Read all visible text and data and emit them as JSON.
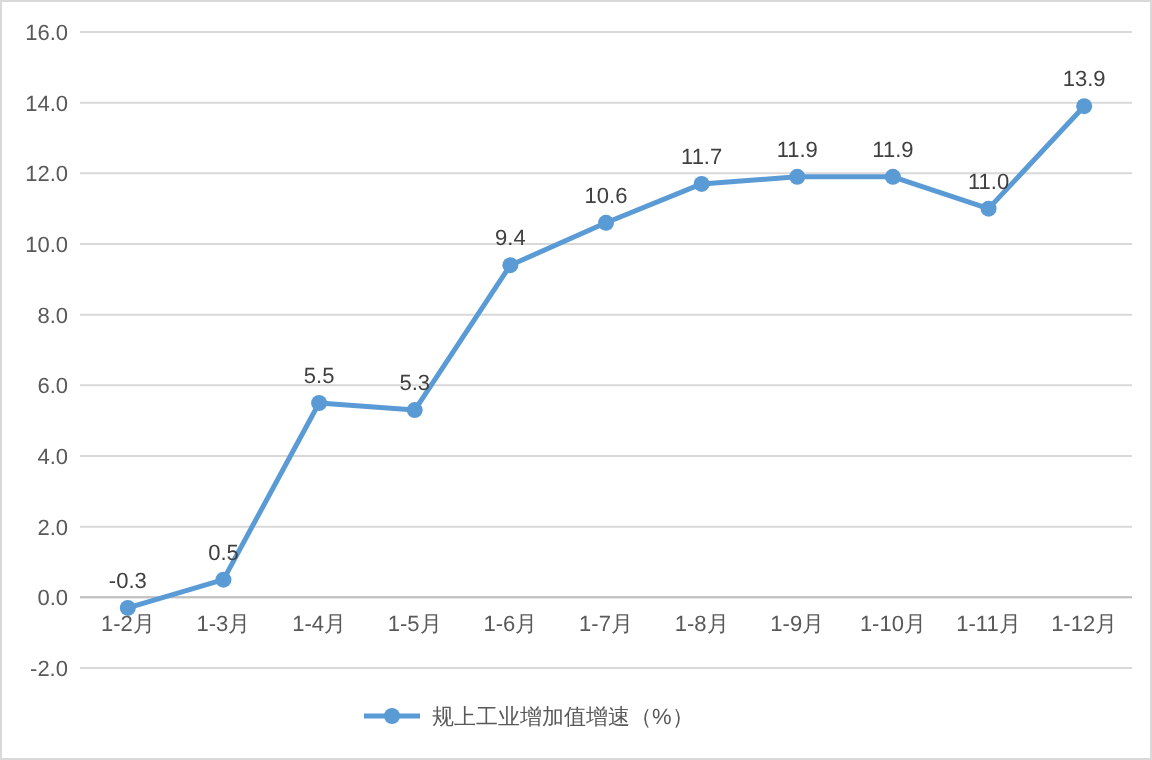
{
  "chart_data": {
    "type": "line",
    "categories": [
      "1-2月",
      "1-3月",
      "1-4月",
      "1-5月",
      "1-6月",
      "1-7月",
      "1-8月",
      "1-9月",
      "1-10月",
      "1-11月",
      "1-12月"
    ],
    "series": [
      {
        "name": "规上工业增加值增速（%）",
        "color": "#5b9bd5",
        "values": [
          -0.3,
          0.5,
          5.5,
          5.3,
          9.4,
          10.6,
          11.7,
          11.9,
          11.9,
          11.0,
          13.9
        ],
        "value_labels": [
          "-0.3",
          "0.5",
          "5.5",
          "5.3",
          "9.4",
          "10.6",
          "11.7",
          "11.9",
          "11.9",
          "11.0",
          "13.9"
        ]
      }
    ],
    "ylim": [
      -2,
      16
    ],
    "yticks": [
      {
        "value": -2,
        "label": "-2.0"
      },
      {
        "value": 0,
        "label": "0.0"
      },
      {
        "value": 2,
        "label": "2.0"
      },
      {
        "value": 4,
        "label": "4.0"
      },
      {
        "value": 6,
        "label": "6.0"
      },
      {
        "value": 8,
        "label": "8.0"
      },
      {
        "value": 10,
        "label": "10.0"
      },
      {
        "value": 12,
        "label": "12.0"
      },
      {
        "value": 14,
        "label": "14.0"
      },
      {
        "value": 16,
        "label": "16.0"
      }
    ],
    "grid": "y",
    "legend": "bottom",
    "marker": "circle",
    "line_style": "solid"
  }
}
